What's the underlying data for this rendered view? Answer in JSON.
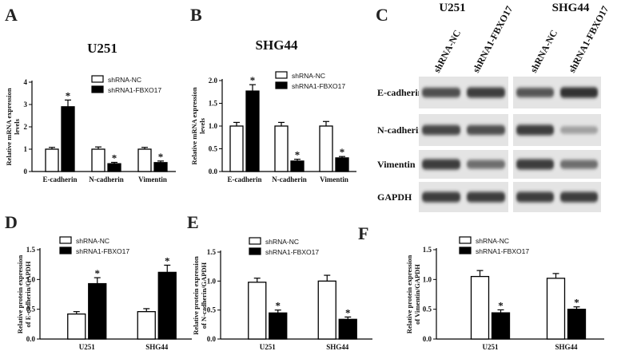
{
  "panels": {
    "A": "A",
    "B": "B",
    "C": "C",
    "D": "D",
    "E": "E",
    "F": "F"
  },
  "chart_data": [
    {
      "id": "A",
      "type": "bar",
      "title": "U251",
      "ylabel": "Relative mRNA expression levels",
      "categories": [
        "E-cadherin",
        "N-cadherin",
        "Vimentin"
      ],
      "ylim": [
        0,
        4
      ],
      "yticks": [
        "0",
        "1",
        "2",
        "3",
        "4"
      ],
      "series": [
        {
          "name": "shRNA-NC",
          "values": [
            1.0,
            1.0,
            1.0
          ],
          "errors": [
            0.08,
            0.1,
            0.08
          ],
          "color": "#ffffff"
        },
        {
          "name": "shRNA1-FBXO17",
          "values": [
            2.9,
            0.35,
            0.4
          ],
          "errors": [
            0.3,
            0.06,
            0.07
          ],
          "color": "#000000"
        }
      ],
      "sig": [
        "*",
        "*",
        "*"
      ],
      "grid": false,
      "legend": "top-right"
    },
    {
      "id": "B",
      "type": "bar",
      "title": "SHG44",
      "ylabel": "Relative mRNA expression levels",
      "categories": [
        "E-cadherin",
        "N-cadherin",
        "Vimentin"
      ],
      "ylim": [
        0,
        2
      ],
      "yticks": [
        "0.0",
        "0.5",
        "1.0",
        "1.5",
        "2.0"
      ],
      "series": [
        {
          "name": "shRNA-NC",
          "values": [
            1.0,
            1.0,
            1.0
          ],
          "errors": [
            0.08,
            0.08,
            0.1
          ],
          "color": "#ffffff"
        },
        {
          "name": "shRNA1-FBXO17",
          "values": [
            1.77,
            0.23,
            0.3
          ],
          "errors": [
            0.14,
            0.04,
            0.03
          ],
          "color": "#000000"
        }
      ],
      "sig": [
        "*",
        "*",
        "*"
      ],
      "grid": false,
      "legend": "top-right"
    },
    {
      "id": "D",
      "type": "bar",
      "title": "",
      "ylabel": "Relative protein expression of E-cadherin/GAPDH",
      "categories": [
        "U251",
        "SHG44"
      ],
      "ylim": [
        0,
        1.5
      ],
      "yticks": [
        "0.0",
        "0.5",
        "1.0",
        "1.5"
      ],
      "series": [
        {
          "name": "shRNA-NC",
          "values": [
            0.42,
            0.46
          ],
          "errors": [
            0.04,
            0.05
          ],
          "color": "#ffffff"
        },
        {
          "name": "shRNA1-FBXO17",
          "values": [
            0.93,
            1.12
          ],
          "errors": [
            0.1,
            0.12
          ],
          "color": "#000000"
        }
      ],
      "sig": [
        "*",
        "*"
      ],
      "grid": false,
      "legend": "top-left"
    },
    {
      "id": "E",
      "type": "bar",
      "title": "",
      "ylabel": "Relative protein expression of N-cadherin/GAPDH",
      "categories": [
        "U251",
        "SHG44"
      ],
      "ylim": [
        0,
        1.5
      ],
      "yticks": [
        "0.0",
        "0.5",
        "1.0",
        "1.5"
      ],
      "series": [
        {
          "name": "shRNA-NC",
          "values": [
            0.98,
            1.0
          ],
          "errors": [
            0.07,
            0.1
          ],
          "color": "#ffffff"
        },
        {
          "name": "shRNA1-FBXO17",
          "values": [
            0.45,
            0.34
          ],
          "errors": [
            0.05,
            0.04
          ],
          "color": "#000000"
        }
      ],
      "sig": [
        "*",
        "*"
      ],
      "grid": false,
      "legend": "top-left"
    },
    {
      "id": "F",
      "type": "bar",
      "title": "",
      "ylabel": "Relative protein expression of Vimentin/GAPDH",
      "categories": [
        "U251",
        "SHG44"
      ],
      "ylim": [
        0,
        1.5
      ],
      "yticks": [
        "0.0",
        "0.5",
        "1.0",
        "1.5"
      ],
      "series": [
        {
          "name": "shRNA-NC",
          "values": [
            1.05,
            1.02
          ],
          "errors": [
            0.1,
            0.08
          ],
          "color": "#ffffff"
        },
        {
          "name": "shRNA1-FBXO17",
          "values": [
            0.44,
            0.5
          ],
          "errors": [
            0.05,
            0.04
          ],
          "color": "#000000"
        }
      ],
      "sig": [
        "*",
        "*"
      ],
      "grid": false,
      "legend": "top-left"
    }
  ],
  "western_blot": {
    "cell_lines": [
      "U251",
      "SHG44"
    ],
    "lanes": [
      "shRNA-NC",
      "shRNA1-FBXO17"
    ],
    "rows": [
      {
        "label": "E-cadherin",
        "intensities": [
          0.75,
          0.85,
          0.72,
          0.9
        ]
      },
      {
        "label": "N-cadherin",
        "intensities": [
          0.8,
          0.75,
          0.85,
          0.35
        ]
      },
      {
        "label": "Vimentin",
        "intensities": [
          0.85,
          0.6,
          0.85,
          0.6
        ]
      },
      {
        "label": "GAPDH",
        "intensities": [
          0.85,
          0.85,
          0.85,
          0.85
        ]
      }
    ]
  }
}
